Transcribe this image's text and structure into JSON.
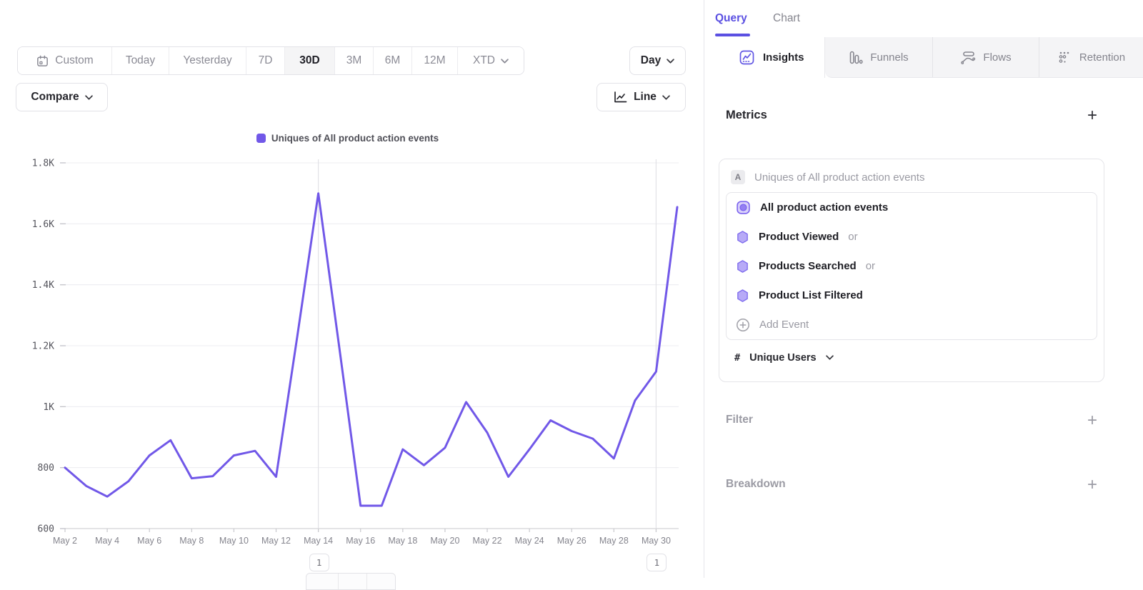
{
  "toolbar": {
    "date_ranges": [
      "Custom",
      "Today",
      "Yesterday",
      "7D",
      "30D",
      "3M",
      "6M",
      "12M",
      "XTD"
    ],
    "active_range": "30D",
    "granularity_label": "Day",
    "compare_label": "Compare",
    "chart_type_label": "Line"
  },
  "legend": {
    "label": "Uniques of All product action events"
  },
  "chart_data": {
    "type": "line",
    "title": "Uniques of All product action events",
    "xlabel": "",
    "ylabel": "",
    "x": [
      "May 2",
      "May 3",
      "May 4",
      "May 5",
      "May 6",
      "May 7",
      "May 8",
      "May 9",
      "May 10",
      "May 11",
      "May 12",
      "May 13",
      "May 14",
      "May 15",
      "May 16",
      "May 17",
      "May 18",
      "May 19",
      "May 20",
      "May 21",
      "May 22",
      "May 23",
      "May 24",
      "May 25",
      "May 26",
      "May 27",
      "May 28",
      "May 29",
      "May 30",
      "May 31"
    ],
    "x_tick_every": 2,
    "series": [
      {
        "name": "Uniques of All product action events",
        "color": "#7158e8",
        "values": [
          800,
          740,
          705,
          755,
          840,
          890,
          765,
          772,
          840,
          855,
          770,
          1230,
          1700,
          1190,
          675,
          675,
          860,
          808,
          865,
          1015,
          915,
          770,
          860,
          955,
          920,
          895,
          830,
          1020,
          1115,
          1655
        ]
      }
    ],
    "ylim": [
      600,
      1800
    ],
    "y_ticks": [
      {
        "label": "600",
        "value": 600
      },
      {
        "label": "800",
        "value": 800
      },
      {
        "label": "1K",
        "value": 1000
      },
      {
        "label": "1.2K",
        "value": 1200
      },
      {
        "label": "1.4K",
        "value": 1400
      },
      {
        "label": "1.6K",
        "value": 1600
      },
      {
        "label": "1.8K",
        "value": 1800
      }
    ],
    "grid": true,
    "legend_position": "top",
    "annotations": [
      {
        "label": "1",
        "index": 12,
        "date": "May 14"
      },
      {
        "label": "1",
        "index": 28,
        "date": "May 30"
      }
    ]
  },
  "panel": {
    "header_tabs": [
      {
        "label": "Query",
        "active": true
      },
      {
        "label": "Chart",
        "active": false
      }
    ],
    "report_tabs": [
      {
        "label": "Insights",
        "active": true
      },
      {
        "label": "Funnels",
        "active": false
      },
      {
        "label": "Flows",
        "active": false
      },
      {
        "label": "Retention",
        "active": false
      }
    ],
    "metrics": {
      "title": "Metrics",
      "add_label": "+",
      "badge": "A",
      "summary": "Uniques of All product action events",
      "events": [
        {
          "name": "All product action events",
          "suffix": ""
        },
        {
          "name": "Product Viewed",
          "suffix": "or"
        },
        {
          "name": "Products Searched",
          "suffix": "or"
        },
        {
          "name": "Product List Filtered",
          "suffix": ""
        }
      ],
      "add_event_label": "Add Event",
      "aggregation_prefix": "#",
      "aggregation": "Unique Users"
    },
    "sections": [
      {
        "label": "Filter",
        "add_label": "+"
      },
      {
        "label": "Breakdown",
        "add_label": "+"
      }
    ]
  },
  "colors": {
    "accent": "#5b50e2",
    "line": "#7158e8"
  }
}
